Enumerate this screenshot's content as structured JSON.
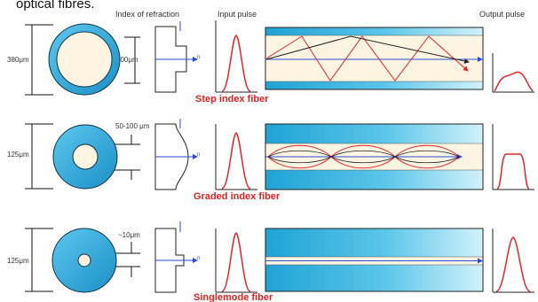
{
  "caption": "optical fibres.",
  "headers": {
    "index_of_refraction": "Index of refraction",
    "input_pulse": "Input pulse",
    "output_pulse": "Output pulse"
  },
  "axis_symbol": "n",
  "colors": {
    "cladding": "#21a7d6",
    "cladding_light": "#bfe9f7",
    "core": "#fdf4e2",
    "ray": "#e4262b",
    "axis": "#2a4bd7",
    "caption": "#e0201e"
  },
  "rows": [
    {
      "name": "Step index fiber",
      "outer_dim": "380μm",
      "core_dim": "200μm"
    },
    {
      "name": "Graded index fiber",
      "outer_dim": "125μm",
      "core_dim": "50-100 μm"
    },
    {
      "name": "Singlemode fiber",
      "outer_dim": "125μm",
      "core_dim": "~10μm"
    }
  ]
}
